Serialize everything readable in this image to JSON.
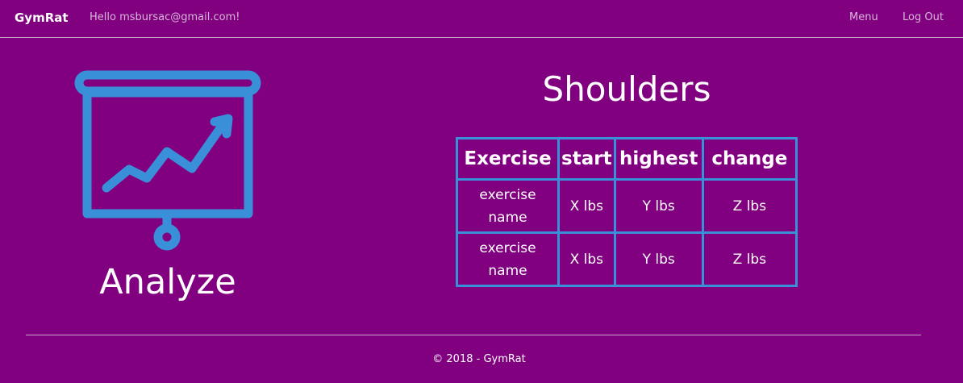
{
  "navbar": {
    "brand": "GymRat",
    "greeting": "Hello msbursac@gmail.com!",
    "links": [
      {
        "label": "Menu"
      },
      {
        "label": "Log Out"
      }
    ]
  },
  "feature": {
    "icon": "presentation-chart-icon",
    "label": "Analyze"
  },
  "section": {
    "title": "Shoulders"
  },
  "table": {
    "headers": [
      "Exercise",
      "start",
      "highest",
      "change"
    ],
    "rows": [
      [
        "exercise name",
        "X lbs",
        "Y lbs",
        "Z lbs"
      ],
      [
        "exercise name",
        "X lbs",
        "Y lbs",
        "Z lbs"
      ]
    ]
  },
  "footer": {
    "text": "© 2018 - GymRat"
  },
  "colors": {
    "background": "#800080",
    "accent": "#3a8fd9",
    "nav_text": "#d7b7d7"
  }
}
